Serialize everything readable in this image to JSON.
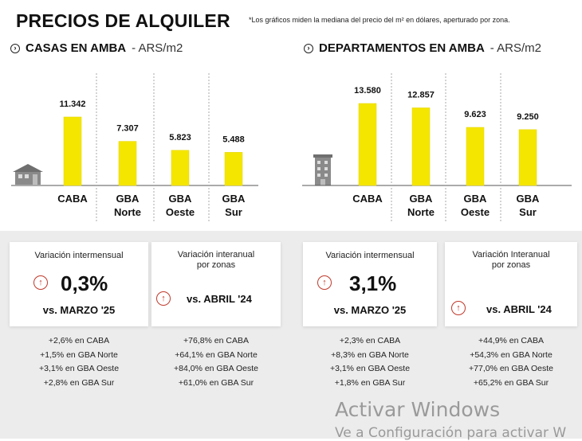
{
  "header": {
    "title": "PRECIOS DE ALQUILER",
    "footnote": "*Los gráficos miden la mediana del precio del m² en dólares, aperturado por zona."
  },
  "left_section": {
    "title": "CASAS EN AMBA",
    "unit": " - ARS/m2",
    "icon": "arrow-right-circle-icon"
  },
  "right_section": {
    "title": "DEPARTAMENTOS EN AMBA",
    "unit": " - ARS/m2",
    "icon": "arrow-right-circle-icon"
  },
  "chart_data": [
    {
      "type": "bar",
      "title": "CASAS EN AMBA - ARS/m2",
      "categories": [
        [
          "CABA"
        ],
        [
          "GBA",
          "Norte"
        ],
        [
          "GBA",
          "Oeste"
        ],
        [
          "GBA",
          "Sur"
        ]
      ],
      "values": [
        11342,
        7307,
        5823,
        5488
      ],
      "value_labels": [
        "11.342",
        "7.307",
        "5.823",
        "5.488"
      ],
      "ylim": [
        0,
        13580
      ],
      "bar_color": "#f5e600"
    },
    {
      "type": "bar",
      "title": "DEPARTAMENTOS EN AMBA - ARS/m2",
      "categories": [
        [
          "CABA"
        ],
        [
          "GBA",
          "Norte"
        ],
        [
          "GBA",
          "Oeste"
        ],
        [
          "GBA",
          "Sur"
        ]
      ],
      "values": [
        13580,
        12857,
        9623,
        9250
      ],
      "value_labels": [
        "13.580",
        "12.857",
        "9.623",
        "9.250"
      ],
      "ylim": [
        0,
        13580
      ],
      "bar_color": "#f5e600"
    }
  ],
  "cards": {
    "casas_mensual": {
      "title": "Variación intermensual",
      "value": "0,3%",
      "vs": "vs. MARZO '25",
      "details": [
        "+2,6% en CABA",
        "+1,5% en GBA Norte",
        "+3,1% en GBA Oeste",
        "+2,8% en GBA Sur"
      ]
    },
    "casas_anual": {
      "title_line1": "Variación interanual",
      "title_line2": "por zonas",
      "vs": "vs. ABRIL '24",
      "details": [
        "+76,8% en CABA",
        "+64,1% en GBA Norte",
        "+84,0% en GBA Oeste",
        "+61,0% en GBA Sur"
      ]
    },
    "deptos_mensual": {
      "title": "Variación intermensual",
      "value": "3,1%",
      "vs": "vs. MARZO '25",
      "details": [
        "+2,3% en CABA",
        "+8,3% en GBA Norte",
        "+3,1% en GBA Oeste",
        "+1,8% en GBA Sur"
      ]
    },
    "deptos_anual": {
      "title_line1": "Variación Interanual",
      "title_line2": "por zonas",
      "vs": "vs. ABRIL '24",
      "details": [
        "+44,9% en CABA",
        "+54,3% en GBA Norte",
        "+77,0% en GBA Oeste",
        "+65,2% en GBA Sur"
      ]
    }
  },
  "watermark": {
    "line1": "Activar Windows",
    "line2": "Ve a Configuración para activar W"
  },
  "colors": {
    "bar": "#f5e600",
    "up_arrow": "#c0392b",
    "panel_bg": "#ececec"
  }
}
